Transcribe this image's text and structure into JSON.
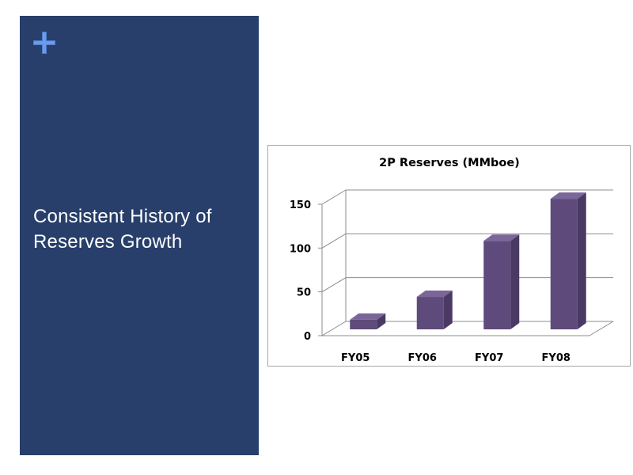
{
  "slide": {
    "title": "Consistent History of Reserves Growth",
    "plus_icon": "plus-icon",
    "colors": {
      "panel": "#283f6b",
      "plus_icon": "#4f7ecf",
      "title_text": "#ffffff",
      "bar_front": "#5e4a7b",
      "bar_top": "#7a6699",
      "bar_side": "#4a3a63"
    }
  },
  "chart_data": {
    "type": "bar",
    "title": "2P Reserves (MMboe)",
    "categories": [
      "FY05",
      "FY06",
      "FY07",
      "FY08"
    ],
    "values": [
      11,
      37,
      101,
      149
    ],
    "ylim": [
      0,
      150
    ],
    "yticks": [
      0,
      50,
      100,
      150
    ],
    "xlabel": "",
    "ylabel": "",
    "grid": true,
    "legend": "none",
    "style": "3d-column"
  }
}
